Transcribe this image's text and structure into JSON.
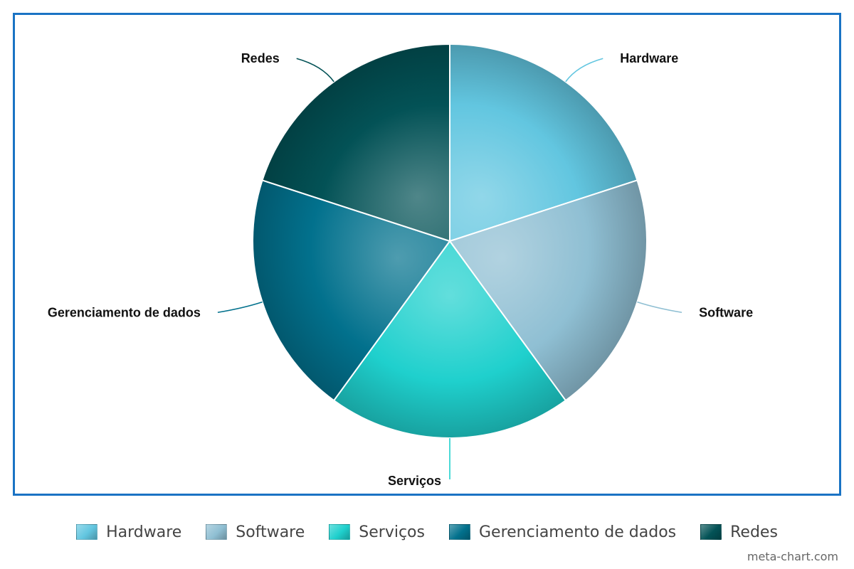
{
  "chart_data": {
    "type": "pie",
    "title": "",
    "slices": [
      {
        "label": "Hardware",
        "value": 20,
        "color": "#62c6e0"
      },
      {
        "label": "Software",
        "value": 20,
        "color": "#8fbfd3"
      },
      {
        "label": "Serviços",
        "value": 20,
        "color": "#1fd0cd"
      },
      {
        "label": "Gerenciamento de dados",
        "value": 20,
        "color": "#02718d"
      },
      {
        "label": "Redes",
        "value": 20,
        "color": "#035256"
      }
    ],
    "legend_position": "bottom"
  },
  "legend": {
    "items": [
      {
        "label": "Hardware",
        "color": "#62c6e0"
      },
      {
        "label": "Software",
        "color": "#8fbfd3"
      },
      {
        "label": "Serviços",
        "color": "#1fd0cd"
      },
      {
        "label": "Gerenciamento de dados",
        "color": "#02718d"
      },
      {
        "label": "Redes",
        "color": "#035256"
      }
    ]
  },
  "watermark": "meta-chart.com"
}
